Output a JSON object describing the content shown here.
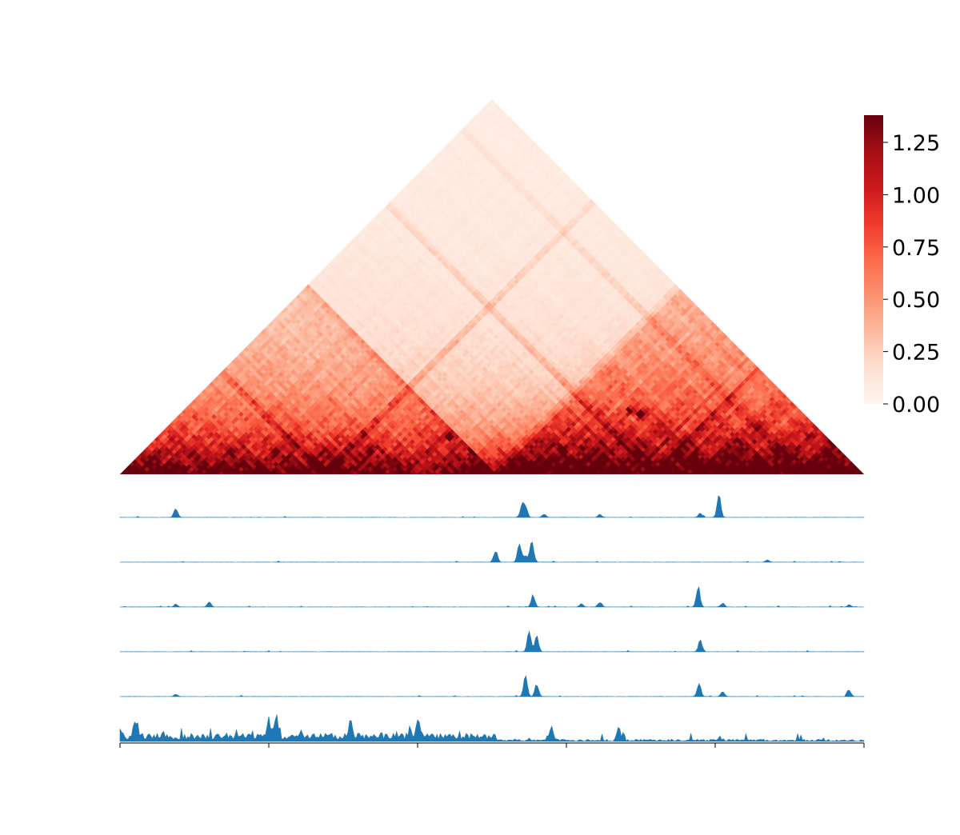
{
  "chart_data": [
    {
      "type": "heatmap",
      "title": "",
      "xlabel": "",
      "ylabel": "",
      "shape": "triangle (upper half of symmetric contact matrix, rotated 45°)",
      "colormap": "Reds",
      "colorbar": {
        "range": [
          0,
          1.38
        ],
        "ticks": [
          0.0,
          0.25,
          0.5,
          0.75,
          1.0,
          1.25
        ],
        "tick_labels": [
          "0.00",
          "0.25",
          "0.50",
          "0.75",
          "1.00",
          "1.25"
        ]
      },
      "domains": [
        {
          "start": 0.0,
          "end": 0.505,
          "strength": 0.35
        },
        {
          "start": 0.505,
          "end": 1.0,
          "strength": 0.55
        }
      ],
      "stripes": [
        0.275,
        0.5,
        0.72,
        0.92
      ],
      "hotspots": [
        {
          "i": 0.395,
          "j": 0.495,
          "value": 1.35
        },
        {
          "i": 0.305,
          "j": 0.37,
          "value": 1.3
        },
        {
          "i": 0.62,
          "j": 0.78,
          "value": 1.38
        },
        {
          "i": 0.6,
          "j": 0.77,
          "value": 1.2
        }
      ]
    },
    {
      "type": "area",
      "tracks": [
        {
          "peaks": [
            {
              "x": 0.075,
              "h": 0.45
            },
            {
              "x": 0.54,
              "h": 0.55
            },
            {
              "x": 0.545,
              "h": 0.6
            },
            {
              "x": 0.57,
              "h": 0.15
            },
            {
              "x": 0.645,
              "h": 0.15
            },
            {
              "x": 0.78,
              "h": 0.2
            },
            {
              "x": 0.805,
              "h": 1.0
            }
          ]
        },
        {
          "peaks": [
            {
              "x": 0.505,
              "h": 0.55
            },
            {
              "x": 0.537,
              "h": 1.0
            },
            {
              "x": 0.545,
              "h": 0.35
            },
            {
              "x": 0.553,
              "h": 0.7
            },
            {
              "x": 0.555,
              "h": 0.3
            },
            {
              "x": 0.87,
              "h": 0.1
            }
          ]
        },
        {
          "peaks": [
            {
              "x": 0.075,
              "h": 0.12
            },
            {
              "x": 0.12,
              "h": 0.25
            },
            {
              "x": 0.555,
              "h": 0.55
            },
            {
              "x": 0.62,
              "h": 0.15
            },
            {
              "x": 0.645,
              "h": 0.25
            },
            {
              "x": 0.777,
              "h": 1.0
            },
            {
              "x": 0.81,
              "h": 0.2
            },
            {
              "x": 0.98,
              "h": 0.1
            }
          ]
        },
        {
          "peaks": [
            {
              "x": 0.55,
              "h": 0.95
            },
            {
              "x": 0.56,
              "h": 0.8
            },
            {
              "x": 0.78,
              "h": 0.55
            }
          ]
        },
        {
          "peaks": [
            {
              "x": 0.075,
              "h": 0.12
            },
            {
              "x": 0.545,
              "h": 1.0
            },
            {
              "x": 0.56,
              "h": 0.55
            },
            {
              "x": 0.778,
              "h": 0.65
            },
            {
              "x": 0.81,
              "h": 0.25
            },
            {
              "x": 0.98,
              "h": 0.35
            }
          ]
        },
        {
          "peaks": [
            {
              "x": 0.02,
              "h": 0.8
            },
            {
              "x": 0.2,
              "h": 0.85
            },
            {
              "x": 0.21,
              "h": 0.9
            },
            {
              "x": 0.31,
              "h": 0.8
            },
            {
              "x": 0.4,
              "h": 0.7
            },
            {
              "x": 0.58,
              "h": 0.6
            },
            {
              "x": 0.67,
              "h": 0.45
            }
          ],
          "baseline": 0.25,
          "baseline_end": 0.505
        }
      ],
      "x_ticks": 6
    }
  ]
}
